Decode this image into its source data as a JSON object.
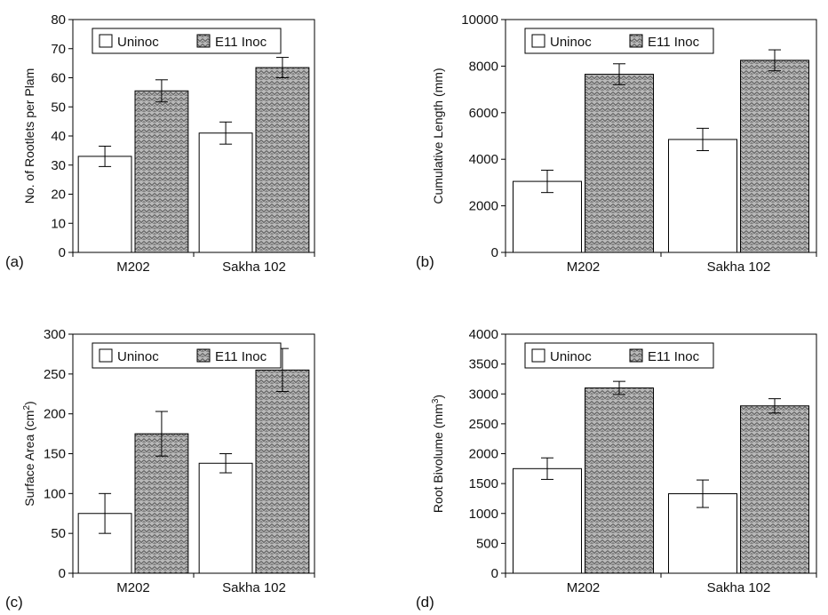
{
  "chart_data": [
    {
      "type": "bar",
      "panel_label": "(a)",
      "ylabel": "No. of Rootlets per Plam",
      "ylabel_sup": "",
      "ylabel_after": "",
      "categories": [
        "M202",
        "Sakha 102"
      ],
      "series": [
        {
          "name": "Uninoc",
          "fill": "#ffffff",
          "values": [
            33,
            41
          ],
          "errors": [
            3.5,
            3.8
          ]
        },
        {
          "name": "E11 Inoc",
          "fill": "#9c9c9c",
          "values": [
            55.5,
            63.5
          ],
          "errors": [
            3.8,
            3.5
          ]
        }
      ],
      "ylim": [
        0,
        80
      ],
      "yticks": [
        0,
        10,
        20,
        30,
        40,
        50,
        60,
        70,
        80
      ],
      "legend": "top-left"
    },
    {
      "type": "bar",
      "panel_label": "(b)",
      "ylabel": "Cumulative Length (mm)",
      "ylabel_sup": "",
      "ylabel_after": "",
      "categories": [
        "M202",
        "Sakha 102"
      ],
      "series": [
        {
          "name": "Uninoc",
          "fill": "#ffffff",
          "values": [
            3050,
            4850
          ],
          "errors": [
            480,
            480
          ]
        },
        {
          "name": "E11 Inoc",
          "fill": "#9c9c9c",
          "values": [
            7650,
            8250
          ],
          "errors": [
            450,
            450
          ]
        }
      ],
      "ylim": [
        0,
        10000
      ],
      "yticks": [
        0,
        2000,
        4000,
        6000,
        8000,
        10000
      ],
      "legend": "top-left"
    },
    {
      "type": "bar",
      "panel_label": "(c)",
      "ylabel": "Surface Area (cm",
      "ylabel_sup": "2",
      "ylabel_after": ")",
      "categories": [
        "M202",
        "Sakha 102"
      ],
      "series": [
        {
          "name": "Uninoc",
          "fill": "#ffffff",
          "values": [
            75,
            138
          ],
          "errors": [
            25,
            12
          ]
        },
        {
          "name": "E11 Inoc",
          "fill": "#9c9c9c",
          "values": [
            175,
            255
          ],
          "errors": [
            28,
            27
          ]
        }
      ],
      "ylim": [
        0,
        300
      ],
      "yticks": [
        0,
        50,
        100,
        150,
        200,
        250,
        300
      ],
      "legend": "top-left"
    },
    {
      "type": "bar",
      "panel_label": "(d)",
      "ylabel": "Root Bivolume (mm",
      "ylabel_sup": "3",
      "ylabel_after": ")",
      "categories": [
        "M202",
        "Sakha 102"
      ],
      "series": [
        {
          "name": "Uninoc",
          "fill": "#ffffff",
          "values": [
            1750,
            1330
          ],
          "errors": [
            180,
            230
          ]
        },
        {
          "name": "E11 Inoc",
          "fill": "#9c9c9c",
          "values": [
            3100,
            2800
          ],
          "errors": [
            110,
            120
          ]
        }
      ],
      "ylim": [
        0,
        4000
      ],
      "yticks": [
        0,
        500,
        1000,
        1500,
        2000,
        2500,
        3000,
        3500,
        4000
      ],
      "legend": "top-left"
    }
  ]
}
